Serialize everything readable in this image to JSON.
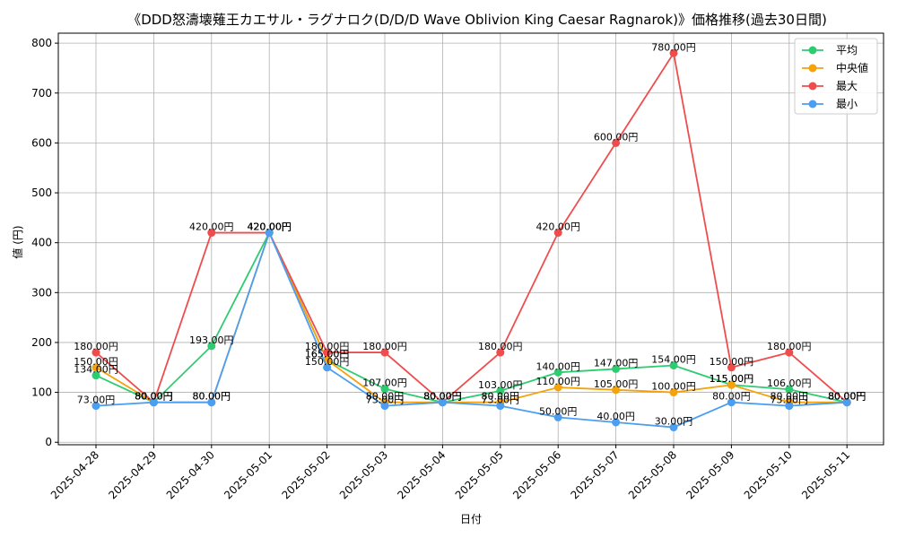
{
  "chart_data": {
    "type": "line",
    "title": "《DDD怒濤壊薙王カエサル・ラグナロク(D/D/D Wave Oblivion King Caesar Ragnarok)》価格推移(過去30日間)",
    "xlabel": "日付",
    "ylabel": "値 (円)",
    "ylim": [
      -5,
      820
    ],
    "yticks": [
      0,
      100,
      200,
      300,
      400,
      500,
      600,
      700,
      800
    ],
    "grid": true,
    "legend_position": "top-right",
    "categories": [
      "2025-04-28",
      "2025-04-29",
      "2025-04-30",
      "2025-05-01",
      "2025-05-02",
      "2025-05-03",
      "2025-05-04",
      "2025-05-05",
      "2025-05-06",
      "2025-05-07",
      "2025-05-08",
      "2025-05-09",
      "2025-05-10",
      "2025-05-11"
    ],
    "series": [
      {
        "name": "平均",
        "color": "#2ecc71",
        "values": [
          134,
          80,
          193,
          420,
          165,
          107,
          80,
          103,
          140,
          147,
          154,
          115,
          106,
          80
        ],
        "labels": [
          "134.00円",
          "80.00円",
          "193.00円",
          "420.00円",
          "165.00円",
          "107.00円",
          "80.00円",
          "103.00円",
          "140.00円",
          "147.00円",
          "154.00円",
          "115.00円",
          "106.00円",
          "80.00円"
        ]
      },
      {
        "name": "中央値",
        "color": "#f5a20b",
        "values": [
          150,
          80,
          80,
          420,
          165,
          80,
          80,
          80,
          110,
          105,
          100,
          115,
          80,
          80
        ],
        "labels": [
          "150.00円",
          "80.00円",
          "80.00円",
          "420.00円",
          "165.00円",
          "80.00円",
          "80.00円",
          "80.00円",
          "110.00円",
          "105.00円",
          "100.00円",
          "115.00円",
          "80.00円",
          "80.00円"
        ]
      },
      {
        "name": "最大",
        "color": "#ef4d4d",
        "values": [
          180,
          80,
          420,
          420,
          180,
          180,
          80,
          180,
          420,
          600,
          780,
          150,
          180,
          80
        ],
        "labels": [
          "180.00円",
          "80.00円",
          "420.00円",
          "420.00円",
          "180.00円",
          "180.00円",
          "80.00円",
          "180.00円",
          "420.00円",
          "600.00円",
          "780.00円",
          "150.00円",
          "180.00円",
          "80.00円"
        ]
      },
      {
        "name": "最小",
        "color": "#4c9ef0",
        "values": [
          73,
          80,
          80,
          420,
          150,
          73,
          80,
          73,
          50,
          40,
          30,
          80,
          73,
          80
        ],
        "labels": [
          "73.00円",
          "80.00円",
          "80.00円",
          "420.00円",
          "150.00円",
          "73.00円",
          "80.00円",
          "73.00円",
          "50.00円",
          "40.00円",
          "30.00円",
          "80.00円",
          "73.00円",
          "80.00円"
        ]
      }
    ]
  }
}
